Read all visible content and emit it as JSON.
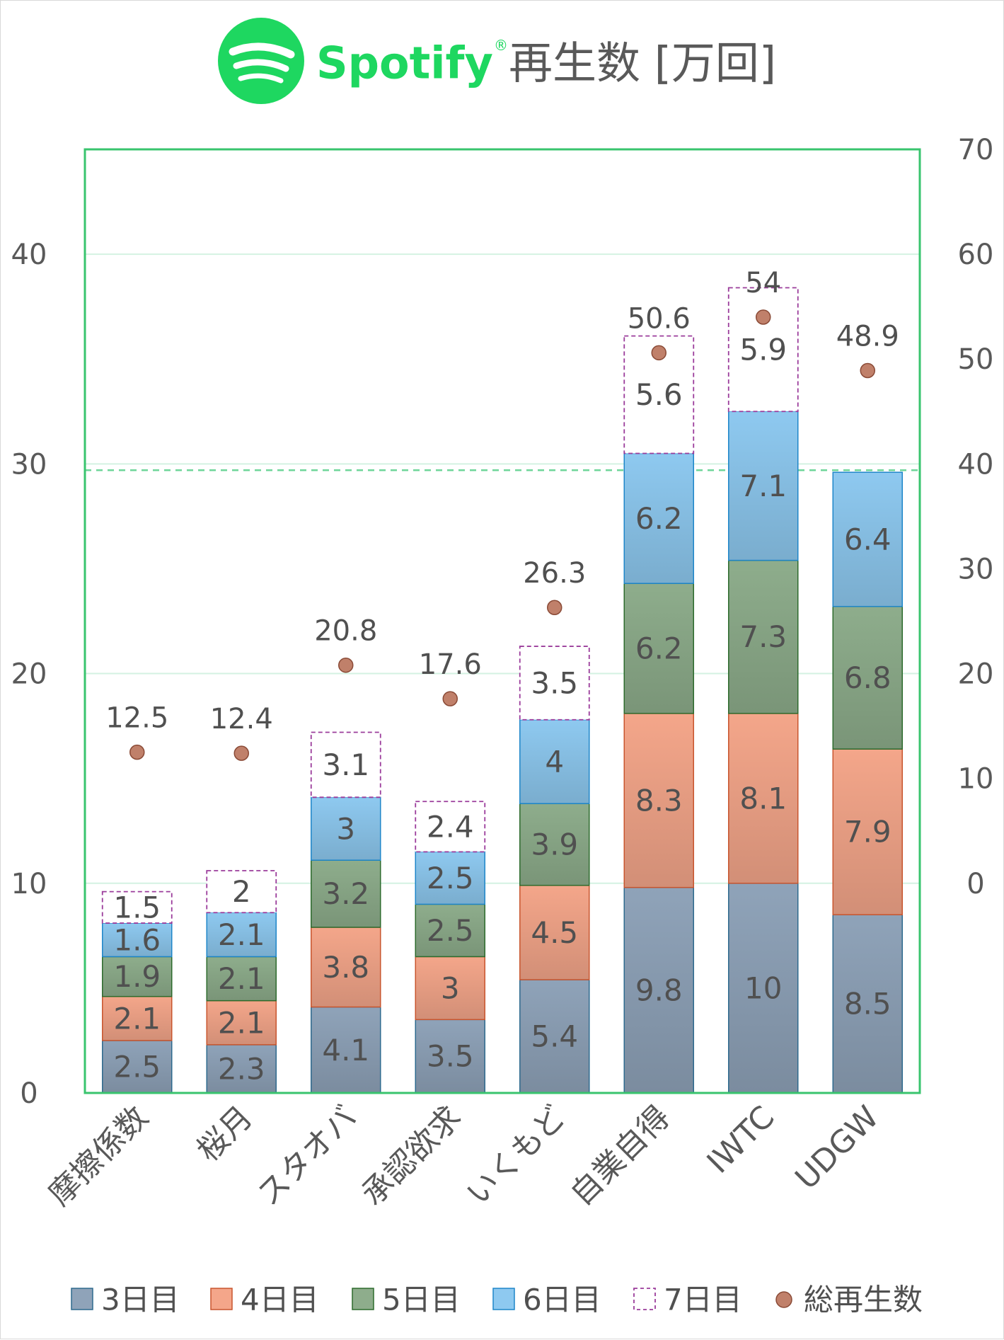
{
  "title": {
    "brand": "Spotify",
    "brand_mark": "®",
    "text": "再生数 [万回]",
    "logo_icon": "spotify-logo-icon",
    "brand_color": "#1ED760"
  },
  "chart_data": {
    "type": "bar",
    "stacked": true,
    "categories": [
      "摩擦係数",
      "桜月",
      "スタオバ",
      "承認欲求",
      "いくもど",
      "自業自得",
      "IWTC",
      "UDGW"
    ],
    "series": [
      {
        "name": "3日目",
        "values": [
          2.5,
          2.3,
          4.1,
          3.5,
          5.4,
          9.8,
          10,
          8.5
        ],
        "color": "#8FA3B9",
        "style": "solid"
      },
      {
        "name": "4日目",
        "values": [
          2.1,
          2.1,
          3.8,
          3,
          4.5,
          8.3,
          8.1,
          7.9
        ],
        "color": "#F4A68A",
        "style": "solid"
      },
      {
        "name": "5日目",
        "values": [
          1.9,
          2.1,
          3.2,
          2.5,
          3.9,
          6.2,
          7.3,
          6.8
        ],
        "color": "#8EAD8C",
        "style": "solid"
      },
      {
        "name": "6日目",
        "values": [
          1.6,
          2.1,
          3,
          2.5,
          4,
          6.2,
          7.1,
          6.4
        ],
        "color": "#8EC9F0",
        "style": "solid"
      },
      {
        "name": "7日目",
        "values": [
          1.5,
          2,
          3.1,
          2.4,
          3.5,
          5.6,
          5.9,
          null
        ],
        "color": "#9B3C9B",
        "style": "dashed-outline"
      }
    ],
    "total_series": {
      "name": "総再生数",
      "axis": "right",
      "values": [
        12.5,
        12.4,
        20.8,
        17.6,
        26.3,
        50.6,
        54,
        48.9
      ],
      "color": "#C0806A"
    },
    "left_axis": {
      "ylim": [
        0,
        45
      ],
      "ticks": [
        0,
        10,
        20,
        30,
        40
      ]
    },
    "right_axis": {
      "ylim": [
        -20,
        70
      ],
      "ticks": [
        0,
        10,
        20,
        30,
        40,
        50,
        60,
        70
      ]
    },
    "reference_line": {
      "value": 29.7,
      "style": "dashed",
      "color": "#6FD69A"
    },
    "grid": true,
    "legend_position": "bottom"
  }
}
